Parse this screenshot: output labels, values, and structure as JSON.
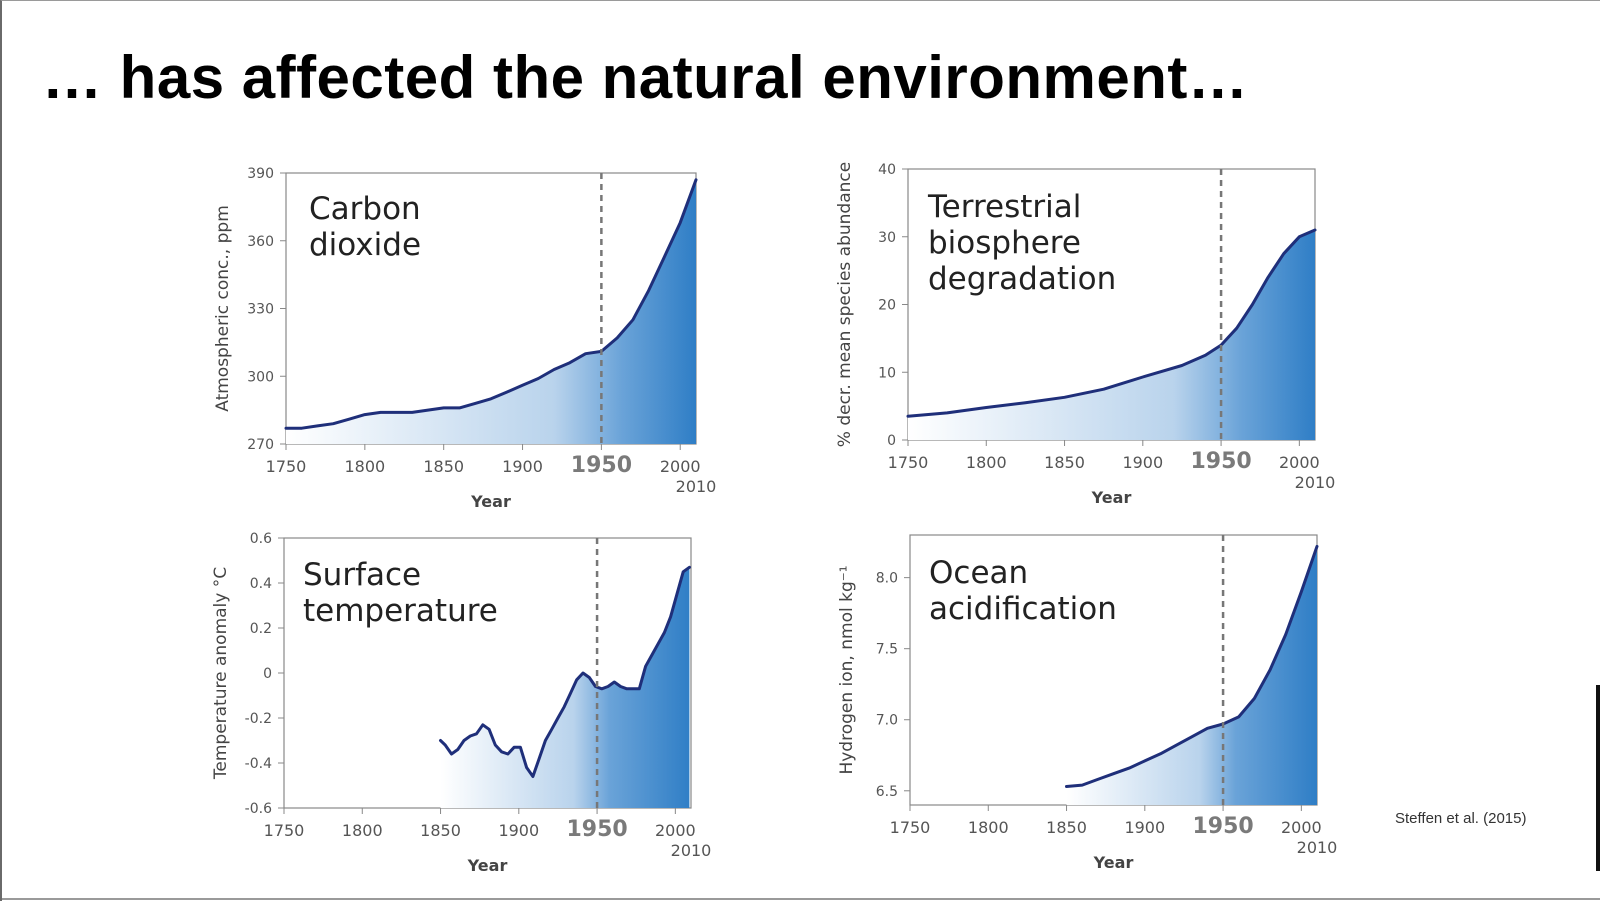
{
  "title": "… has affected the natural environment…",
  "citation": "Steffen et al. (2015)",
  "colors": {
    "line": "#1f2f7a",
    "fill_dark": "#2f7ec6",
    "fill_light": "#ffffff",
    "marker": "#777777"
  },
  "chart_data": [
    {
      "type": "area",
      "title_lines": [
        "Carbon",
        "dioxide"
      ],
      "xlabel": "Year",
      "ylabel": "Atmospheric conc., ppm",
      "xlim": [
        1750,
        2010
      ],
      "ylim": [
        270,
        390
      ],
      "xticks": [
        1750,
        1800,
        1850,
        1900,
        1950,
        2000
      ],
      "xtick_labels": [
        "1750",
        "1800",
        "1850",
        "1900",
        "1950",
        "2000"
      ],
      "yticks": [
        270,
        300,
        330,
        360,
        390
      ],
      "ytick_labels": [
        "270",
        "300",
        "330",
        "360",
        "390"
      ],
      "highlight_year": 1950,
      "extra_label": "2010",
      "x": [
        1750,
        1760,
        1770,
        1780,
        1790,
        1800,
        1810,
        1820,
        1830,
        1840,
        1850,
        1860,
        1870,
        1880,
        1890,
        1900,
        1910,
        1920,
        1930,
        1940,
        1950,
        1960,
        1970,
        1980,
        1990,
        2000,
        2010
      ],
      "y": [
        277,
        277,
        278,
        279,
        281,
        283,
        284,
        284,
        284,
        285,
        286,
        286,
        288,
        290,
        293,
        296,
        299,
        303,
        306,
        310,
        311,
        317,
        325,
        338,
        353,
        368,
        387
      ]
    },
    {
      "type": "area",
      "title_lines": [
        "Terrestrial",
        "biosphere",
        "degradation"
      ],
      "xlabel": "Year",
      "ylabel": "% decr. mean species abundance",
      "xlim": [
        1750,
        2010
      ],
      "ylim": [
        0,
        40
      ],
      "xticks": [
        1750,
        1800,
        1850,
        1900,
        1950,
        2000
      ],
      "xtick_labels": [
        "1750",
        "1800",
        "1850",
        "1900",
        "1950",
        "2000"
      ],
      "yticks": [
        0,
        10,
        20,
        30,
        40
      ],
      "ytick_labels": [
        "0",
        "10",
        "20",
        "30",
        "40"
      ],
      "highlight_year": 1950,
      "extra_label": "2010",
      "x": [
        1750,
        1775,
        1800,
        1825,
        1850,
        1875,
        1900,
        1925,
        1940,
        1950,
        1960,
        1970,
        1980,
        1990,
        2000,
        2010
      ],
      "y": [
        3.5,
        4.0,
        4.8,
        5.5,
        6.3,
        7.5,
        9.3,
        11.0,
        12.5,
        14.0,
        16.5,
        20.0,
        24.0,
        27.5,
        30.0,
        31.0
      ]
    },
    {
      "type": "area",
      "title_lines": [
        "Surface",
        "temperature"
      ],
      "xlabel": "Year",
      "ylabel": "Temperature anomaly °C",
      "xlim": [
        1750,
        2010
      ],
      "ylim": [
        -0.6,
        0.6
      ],
      "xticks": [
        1750,
        1800,
        1850,
        1900,
        1950,
        2000
      ],
      "xtick_labels": [
        "1750",
        "1800",
        "1850",
        "1900",
        "1950",
        "2000"
      ],
      "yticks": [
        -0.6,
        -0.4,
        -0.2,
        0,
        0.2,
        0.4,
        0.6
      ],
      "ytick_labels": [
        "-0.6",
        "-0.4",
        "-0.2",
        "0",
        "0.2",
        "0.4",
        "0.6"
      ],
      "highlight_year": 1950,
      "extra_label": "2010",
      "x": [
        1850,
        1853,
        1857,
        1861,
        1865,
        1869,
        1873,
        1877,
        1881,
        1885,
        1889,
        1893,
        1897,
        1901,
        1905,
        1909,
        1913,
        1917,
        1921,
        1925,
        1929,
        1933,
        1937,
        1941,
        1945,
        1949,
        1953,
        1957,
        1961,
        1965,
        1969,
        1973,
        1977,
        1981,
        1985,
        1989,
        1993,
        1997,
        2001,
        2005,
        2009
      ],
      "y": [
        -0.3,
        -0.32,
        -0.36,
        -0.34,
        -0.3,
        -0.28,
        -0.27,
        -0.23,
        -0.25,
        -0.32,
        -0.35,
        -0.36,
        -0.33,
        -0.33,
        -0.42,
        -0.46,
        -0.38,
        -0.3,
        -0.25,
        -0.2,
        -0.15,
        -0.09,
        -0.03,
        0.0,
        -0.02,
        -0.06,
        -0.07,
        -0.06,
        -0.04,
        -0.06,
        -0.07,
        -0.07,
        -0.07,
        0.03,
        0.08,
        0.13,
        0.18,
        0.25,
        0.35,
        0.45,
        0.47
      ]
    },
    {
      "type": "area",
      "title_lines": [
        "Ocean",
        "acidification"
      ],
      "xlabel": "Year",
      "ylabel": "Hydrogen ion, nmol kg⁻¹",
      "xlim": [
        1750,
        2010
      ],
      "ylim": [
        6.4,
        8.3
      ],
      "xticks": [
        1750,
        1800,
        1850,
        1900,
        1950,
        2000
      ],
      "xtick_labels": [
        "1750",
        "1800",
        "1850",
        "1900",
        "1950",
        "2000"
      ],
      "yticks": [
        6.5,
        7.0,
        7.5,
        8.0
      ],
      "ytick_labels": [
        "6.5",
        "7.0",
        "7.5",
        "8.0"
      ],
      "highlight_year": 1950,
      "extra_label": "2010",
      "x": [
        1850,
        1860,
        1870,
        1880,
        1890,
        1900,
        1910,
        1920,
        1930,
        1940,
        1950,
        1960,
        1970,
        1980,
        1990,
        2000,
        2010
      ],
      "y": [
        6.53,
        6.54,
        6.58,
        6.62,
        6.66,
        6.71,
        6.76,
        6.82,
        6.88,
        6.94,
        6.97,
        7.02,
        7.15,
        7.35,
        7.6,
        7.9,
        8.22
      ]
    }
  ]
}
